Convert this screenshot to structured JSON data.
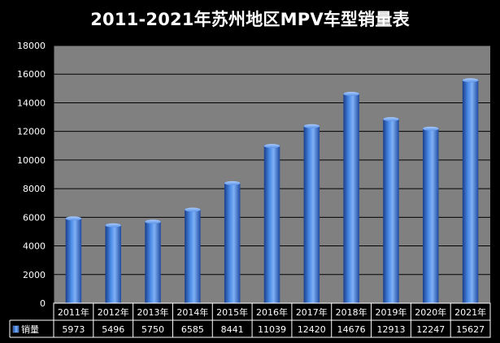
{
  "title": "2011-2021年苏州地区MPV车型销量表",
  "chart_data": {
    "type": "bar",
    "title": "2011-2021年苏州地区MPV车型销量表",
    "categories": [
      "2011年",
      "2012年",
      "2013年",
      "2014年",
      "2015年",
      "2016年",
      "2017年",
      "2018年",
      "2019年",
      "2020年",
      "2021年"
    ],
    "series": [
      {
        "name": "销量",
        "values": [
          5973,
          5496,
          5750,
          6585,
          8441,
          11039,
          12420,
          14676,
          12913,
          12247,
          15627
        ]
      }
    ],
    "ylim": [
      0,
      18000
    ],
    "yticks": [
      0,
      2000,
      4000,
      6000,
      8000,
      10000,
      12000,
      14000,
      16000,
      18000
    ],
    "grid": true,
    "legend": "data-table-left",
    "data_table": true
  },
  "colors": {
    "background": "#000000",
    "plot_area": "#808080",
    "bar": "#3a78d8",
    "bar_dark": "#1a3f8c",
    "bar_light": "#7fb0f5",
    "grid": "#000000",
    "text": "#ffffff"
  }
}
